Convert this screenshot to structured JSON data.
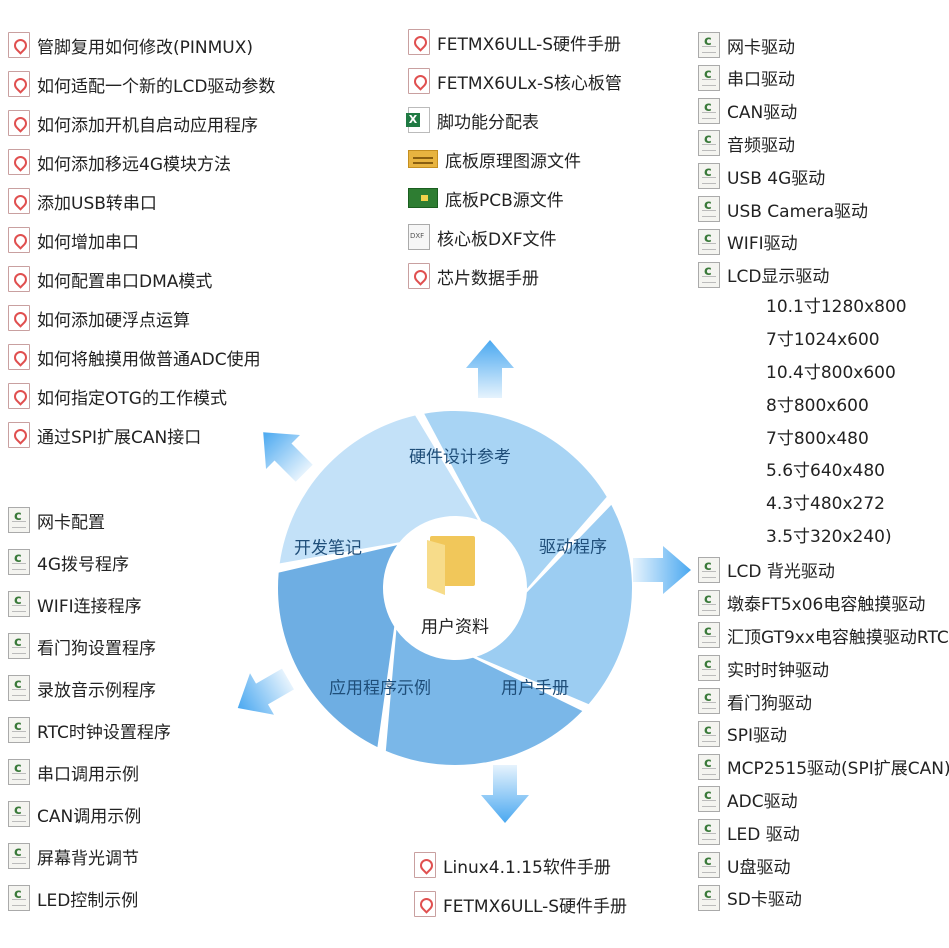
{
  "center": {
    "label": "用户资料",
    "icon": "folder-icon"
  },
  "segments": [
    {
      "label": "硬件设计参考",
      "color": "#a8d4f4"
    },
    {
      "label": "驱动程序",
      "color": "#9ccdf2"
    },
    {
      "label": "用户手册",
      "color": "#7ab7e8"
    },
    {
      "label": "应用程序示例",
      "color": "#6eaee3"
    },
    {
      "label": "开发笔记",
      "color": "#c3e1f8"
    }
  ],
  "dev_notes": [
    {
      "icon": "pdf",
      "label": "管脚复用如何修改(PINMUX)"
    },
    {
      "icon": "pdf",
      "label": "如何适配一个新的LCD驱动参数"
    },
    {
      "icon": "pdf",
      "label": "如何添加开机自启动应用程序"
    },
    {
      "icon": "pdf",
      "label": "如何添加移远4G模块方法"
    },
    {
      "icon": "pdf",
      "label": "添加USB转串口"
    },
    {
      "icon": "pdf",
      "label": "如何增加串口"
    },
    {
      "icon": "pdf",
      "label": "如何配置串口DMA模式"
    },
    {
      "icon": "pdf",
      "label": "如何添加硬浮点运算"
    },
    {
      "icon": "pdf",
      "label": "如何将触摸用做普通ADC使用"
    },
    {
      "icon": "pdf",
      "label": "如何指定OTG的工作模式"
    },
    {
      "icon": "pdf",
      "label": "通过SPI扩展CAN接口"
    }
  ],
  "app_examples": [
    {
      "icon": "cfile",
      "label": "网卡配置"
    },
    {
      "icon": "cfile",
      "label": "4G拨号程序"
    },
    {
      "icon": "cfile",
      "label": "WIFI连接程序"
    },
    {
      "icon": "cfile",
      "label": "看门狗设置程序"
    },
    {
      "icon": "cfile",
      "label": "录放音示例程序"
    },
    {
      "icon": "cfile",
      "label": "RTC时钟设置程序"
    },
    {
      "icon": "cfile",
      "label": "串口调用示例"
    },
    {
      "icon": "cfile",
      "label": "CAN调用示例"
    },
    {
      "icon": "cfile",
      "label": "屏幕背光调节"
    },
    {
      "icon": "cfile",
      "label": "LED控制示例"
    }
  ],
  "hardware_ref": [
    {
      "icon": "pdf",
      "label": "FETMX6ULL-S硬件手册"
    },
    {
      "icon": "pdf",
      "label": "FETMX6ULx-S核心板管"
    },
    {
      "icon": "excel",
      "label": "脚功能分配表"
    },
    {
      "icon": "sch",
      "label": "底板原理图源文件"
    },
    {
      "icon": "pcb",
      "label": "底板PCB源文件"
    },
    {
      "icon": "dxf",
      "label": "核心板DXF文件"
    },
    {
      "icon": "pdf",
      "label": "芯片数据手册"
    }
  ],
  "user_manuals": [
    {
      "icon": "pdf",
      "label": "Linux4.1.15软件手册"
    },
    {
      "icon": "pdf",
      "label": "FETMX6ULL-S硬件手册"
    }
  ],
  "drivers": [
    {
      "icon": "cfile",
      "label": "网卡驱动"
    },
    {
      "icon": "cfile",
      "label": "串口驱动"
    },
    {
      "icon": "cfile",
      "label": "CAN驱动"
    },
    {
      "icon": "cfile",
      "label": "音频驱动"
    },
    {
      "icon": "cfile",
      "label": "USB 4G驱动"
    },
    {
      "icon": "cfile",
      "label": "USB Camera驱动"
    },
    {
      "icon": "cfile",
      "label": "WIFI驱动"
    },
    {
      "icon": "cfile",
      "label": "LCD显示驱动",
      "sub": [
        "10.1寸1280x800",
        "7寸1024x600",
        "10.4寸800x600",
        "8寸800x600",
        "7寸800x480",
        "5.6寸640x480",
        "4.3寸480x272",
        "3.5寸320x240)"
      ]
    },
    {
      "icon": "cfile",
      "label": "LCD 背光驱动"
    },
    {
      "icon": "cfile",
      "label": "墩泰FT5x06电容触摸驱动"
    },
    {
      "icon": "cfile",
      "label": "汇顶GT9xx电容触摸驱动RTC"
    },
    {
      "icon": "cfile",
      "label": "实时时钟驱动"
    },
    {
      "icon": "cfile",
      "label": "看门狗驱动"
    },
    {
      "icon": "cfile",
      "label": "SPI驱动"
    },
    {
      "icon": "cfile",
      "label": "MCP2515驱动(SPI扩展CAN)"
    },
    {
      "icon": "cfile",
      "label": "ADC驱动"
    },
    {
      "icon": "cfile",
      "label": "LED 驱动"
    },
    {
      "icon": "cfile",
      "label": "U盘驱动"
    },
    {
      "icon": "cfile",
      "label": "SD卡驱动"
    }
  ],
  "colors": {
    "label_text": "#1f4e79",
    "arrow": "#4aa8f0"
  }
}
